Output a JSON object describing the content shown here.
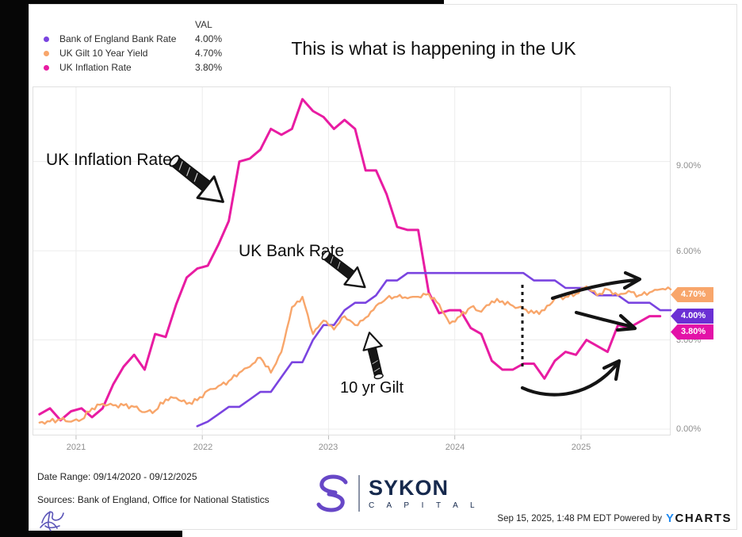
{
  "title": "This is what is happening in the UK",
  "legend": {
    "val_header": "VAL",
    "items": [
      {
        "label": "Bank of England Bank Rate",
        "value": "4.00%",
        "color": "#7a44e0"
      },
      {
        "label": "UK Gilt 10 Year Yield",
        "value": "4.70%",
        "color": "#f8a66b"
      },
      {
        "label": "UK Inflation Rate",
        "value": "3.80%",
        "color": "#e81ca2"
      }
    ]
  },
  "annotations": {
    "inflation": "UK Inflation Rate",
    "bank_rate": "UK Bank Rate",
    "gilt": "10 yr Gilt"
  },
  "axis": {
    "y_ticks": [
      "9.00%",
      "6.00%",
      "3.00%",
      "0.00%"
    ],
    "x_ticks": [
      "2021",
      "2022",
      "2023",
      "2024",
      "2025"
    ]
  },
  "value_tags": [
    {
      "text": "4.70%",
      "color": "#f8a66b"
    },
    {
      "text": "4.00%",
      "color": "#6b2fd4"
    },
    {
      "text": "3.80%",
      "color": "#e312a8"
    }
  ],
  "footer": {
    "date_range": "Date Range: 09/14/2020 - 09/12/2025",
    "sources": "Sources: Bank of England, Office for National Statistics",
    "brand_name": "SYKON",
    "brand_sub": "C A P I T A L",
    "timestamp": "Sep 15, 2025, 1:48 PM EDT Powered by",
    "ycharts_y": "Y",
    "ycharts_rest": "CHARTS"
  },
  "chart_data": {
    "type": "line",
    "title": "This is what is happening in the UK",
    "xlabel": "",
    "ylabel": "",
    "x_unit": "decimal_year",
    "xlim": [
      2020.655,
      2025.71
    ],
    "ylim": [
      0,
      11.8
    ],
    "y_gridlines": [
      0,
      3,
      6,
      9
    ],
    "x_gridlines": [
      2021,
      2022,
      2023,
      2024,
      2025
    ],
    "legend_position": "top-left",
    "series": [
      {
        "name": "UK Inflation Rate",
        "color": "#e81ca2",
        "width": 3,
        "start": 2020.71,
        "step_months": 1,
        "noise": 0,
        "values": [
          0.5,
          0.7,
          0.3,
          0.6,
          0.7,
          0.4,
          0.7,
          1.5,
          2.1,
          2.5,
          2.0,
          3.2,
          3.1,
          4.2,
          5.1,
          5.4,
          5.5,
          6.2,
          7.0,
          9.0,
          9.1,
          9.4,
          10.1,
          9.9,
          10.1,
          11.1,
          10.7,
          10.5,
          10.1,
          10.4,
          10.1,
          8.7,
          8.7,
          7.9,
          6.8,
          6.7,
          6.7,
          4.6,
          3.9,
          4.0,
          4.0,
          3.4,
          3.2,
          2.3,
          2.0,
          2.0,
          2.2,
          2.2,
          1.7,
          2.3,
          2.6,
          2.5,
          3.0,
          2.8,
          2.6,
          3.5,
          3.4,
          3.6,
          3.8,
          3.8
        ]
      },
      {
        "name": "Bank of England Bank Rate",
        "color": "#7a44e0",
        "width": 2.6,
        "start": 2021.96,
        "step_months": 1,
        "noise": 0,
        "values": [
          0.1,
          0.25,
          0.5,
          0.75,
          0.75,
          1.0,
          1.25,
          1.25,
          1.75,
          2.25,
          2.25,
          3.0,
          3.5,
          3.5,
          4.0,
          4.25,
          4.25,
          4.5,
          5.0,
          5.0,
          5.25,
          5.25,
          5.25,
          5.25,
          5.25,
          5.25,
          5.25,
          5.25,
          5.25,
          5.25,
          5.25,
          5.25,
          5.0,
          5.0,
          5.0,
          4.75,
          4.75,
          4.75,
          4.5,
          4.5,
          4.5,
          4.25,
          4.25,
          4.25,
          4.0,
          4.0
        ]
      },
      {
        "name": "UK Gilt 10 Year Yield",
        "color": "#f8a66b",
        "width": 2.4,
        "start": 2020.71,
        "step_months": 1,
        "noise": 0.085,
        "values": [
          0.22,
          0.26,
          0.32,
          0.25,
          0.32,
          0.7,
          0.85,
          0.8,
          0.8,
          0.75,
          0.57,
          0.62,
          1.0,
          1.05,
          0.85,
          0.97,
          1.3,
          1.45,
          1.62,
          1.9,
          2.1,
          2.4,
          1.9,
          2.6,
          4.1,
          4.45,
          3.2,
          3.65,
          3.35,
          3.8,
          3.5,
          3.75,
          4.15,
          4.4,
          4.45,
          4.4,
          4.45,
          4.55,
          4.2,
          3.55,
          3.8,
          4.1,
          3.95,
          4.3,
          4.3,
          4.15,
          4.05,
          3.9,
          4.0,
          4.4,
          4.45,
          4.55,
          4.8,
          4.5,
          4.7,
          4.5,
          4.65,
          4.5,
          4.6,
          4.7,
          4.7
        ]
      }
    ]
  }
}
